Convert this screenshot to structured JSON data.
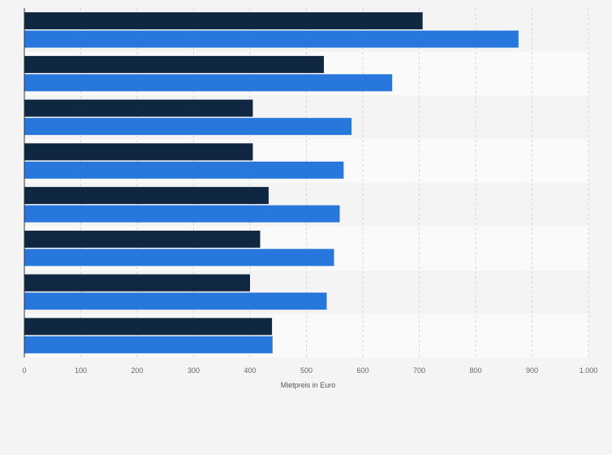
{
  "chart_data": {
    "type": "bar",
    "orientation": "horizontal",
    "title": "",
    "xlabel": "Mietpreis in Euro",
    "ylabel": "",
    "xlim": [
      0,
      1000
    ],
    "xticks": [
      0,
      100,
      200,
      300,
      400,
      500,
      600,
      700,
      800,
      900,
      1000
    ],
    "xtick_labels": [
      "0",
      "100",
      "200",
      "300",
      "400",
      "500",
      "600",
      "700",
      "800",
      "900",
      "1.000"
    ],
    "grid": true,
    "legend": "none",
    "categories": [
      "",
      "",
      "",
      "",
      "",
      "",
      "",
      ""
    ],
    "series": [
      {
        "color": "#0f2741",
        "values": [
          706,
          531,
          405,
          405,
          433,
          418,
          400,
          439
        ]
      },
      {
        "color": "#2877dd",
        "values": [
          876,
          652,
          580,
          566,
          559,
          549,
          536,
          440
        ]
      }
    ]
  }
}
